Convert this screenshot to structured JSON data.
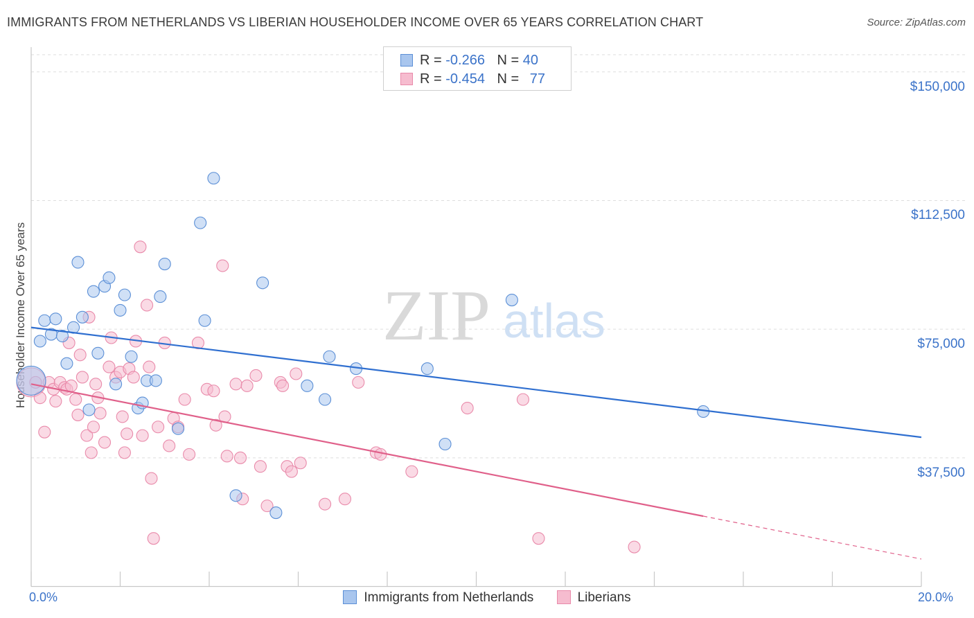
{
  "title": "IMMIGRANTS FROM NETHERLANDS VS LIBERIAN HOUSEHOLDER INCOME OVER 65 YEARS CORRELATION CHART",
  "source": "Source: ZipAtlas.com",
  "watermark": {
    "zip": "ZIP",
    "atlas": "atlas"
  },
  "colors": {
    "blue": "#5b8fd6",
    "blue_fill": "#a9c6ee",
    "blue_line": "#2f6fd0",
    "pink": "#e98aaa",
    "pink_fill": "#f6bccf",
    "pink_line": "#e0608a",
    "tick_text": "#3b73c9",
    "grid": "#dddddd"
  },
  "legend": {
    "rows": [
      {
        "r_label": "R =",
        "r_value": "-0.266",
        "n_label": "N =",
        "n_value": "40"
      },
      {
        "r_label": "R =",
        "r_value": "-0.454",
        "n_label": "N =",
        "n_value": "77"
      }
    ]
  },
  "chart_data": {
    "type": "scatter",
    "title": "IMMIGRANTS FROM NETHERLANDS VS LIBERIAN HOUSEHOLDER INCOME OVER 65 YEARS CORRELATION CHART",
    "xlabel": "",
    "ylabel": "Householder Income Over 65 years",
    "xlim": [
      0,
      20
    ],
    "ylim": [
      0,
      155000
    ],
    "x_tick_labels": [
      "0.0%",
      "20.0%"
    ],
    "y_ticks": [
      {
        "value": 37500,
        "label": "$37,500"
      },
      {
        "value": 75000,
        "label": "$75,000"
      },
      {
        "value": 112500,
        "label": "$112,500"
      },
      {
        "value": 150000,
        "label": "$150,000"
      }
    ],
    "series": [
      {
        "name": "Immigrants from Netherlands",
        "color": "blue",
        "trend": {
          "x0": 0.0,
          "y0": 75500,
          "x1": 20.0,
          "y1": 43500
        },
        "points": [
          [
            0.0,
            60000,
            1
          ],
          [
            0.2,
            71500,
            0
          ],
          [
            0.3,
            77500,
            0
          ],
          [
            0.45,
            73500,
            0
          ],
          [
            0.55,
            78000,
            0
          ],
          [
            0.7,
            73000,
            0
          ],
          [
            0.8,
            65000,
            0
          ],
          [
            0.95,
            75500,
            0
          ],
          [
            1.05,
            94500,
            0
          ],
          [
            1.15,
            78500,
            0
          ],
          [
            1.3,
            51500,
            0
          ],
          [
            1.4,
            86000,
            0
          ],
          [
            1.5,
            68000,
            0
          ],
          [
            1.65,
            87500,
            0
          ],
          [
            1.75,
            90000,
            0
          ],
          [
            1.9,
            59000,
            0
          ],
          [
            2.0,
            80500,
            0
          ],
          [
            2.1,
            85000,
            0
          ],
          [
            2.25,
            67000,
            0
          ],
          [
            2.4,
            52000,
            0
          ],
          [
            2.5,
            53500,
            0
          ],
          [
            2.6,
            60000,
            0
          ],
          [
            2.8,
            60000,
            0
          ],
          [
            2.9,
            84500,
            0
          ],
          [
            3.0,
            94000,
            0
          ],
          [
            3.3,
            46000,
            0
          ],
          [
            3.8,
            106000,
            0
          ],
          [
            3.9,
            77500,
            0
          ],
          [
            4.1,
            119000,
            0
          ],
          [
            4.6,
            26500,
            0
          ],
          [
            5.2,
            88500,
            0
          ],
          [
            5.5,
            21500,
            0
          ],
          [
            6.2,
            58500,
            0
          ],
          [
            6.6,
            54500,
            0
          ],
          [
            6.7,
            67000,
            0
          ],
          [
            7.3,
            63500,
            0
          ],
          [
            8.9,
            63500,
            0
          ],
          [
            9.3,
            41500,
            0
          ],
          [
            10.8,
            83500,
            0
          ],
          [
            15.1,
            51000,
            0
          ]
        ]
      },
      {
        "name": "Liberians",
        "color": "pink",
        "trend": {
          "x0": 0.0,
          "y0": 59000,
          "x1": 15.1,
          "y1": 20500,
          "dash_to_x": 20.0,
          "dash_to_y": 8000
        },
        "points": [
          [
            0.0,
            59500,
            1
          ],
          [
            0.1,
            59500,
            0
          ],
          [
            0.2,
            55000,
            0
          ],
          [
            0.3,
            45000,
            0
          ],
          [
            0.4,
            59500,
            0
          ],
          [
            0.5,
            57500,
            0
          ],
          [
            0.55,
            54000,
            0
          ],
          [
            0.65,
            59500,
            0
          ],
          [
            0.75,
            58000,
            0
          ],
          [
            0.8,
            57500,
            0
          ],
          [
            0.85,
            71000,
            0
          ],
          [
            0.9,
            58500,
            0
          ],
          [
            1.0,
            54500,
            0
          ],
          [
            1.05,
            50000,
            0
          ],
          [
            1.1,
            67500,
            0
          ],
          [
            1.15,
            61000,
            0
          ],
          [
            1.25,
            44000,
            0
          ],
          [
            1.3,
            78500,
            0
          ],
          [
            1.35,
            39000,
            0
          ],
          [
            1.4,
            46500,
            0
          ],
          [
            1.45,
            59000,
            0
          ],
          [
            1.5,
            55000,
            0
          ],
          [
            1.55,
            50500,
            0
          ],
          [
            1.65,
            42000,
            0
          ],
          [
            1.75,
            64000,
            0
          ],
          [
            1.8,
            72500,
            0
          ],
          [
            1.9,
            61000,
            0
          ],
          [
            2.0,
            62500,
            0
          ],
          [
            2.05,
            49500,
            0
          ],
          [
            2.1,
            39000,
            0
          ],
          [
            2.2,
            63500,
            0
          ],
          [
            2.3,
            61000,
            0
          ],
          [
            2.35,
            71500,
            0
          ],
          [
            2.45,
            99000,
            0
          ],
          [
            2.5,
            44000,
            0
          ],
          [
            2.6,
            82000,
            0
          ],
          [
            2.65,
            64000,
            0
          ],
          [
            2.7,
            31500,
            0
          ],
          [
            2.75,
            14000,
            0
          ],
          [
            2.85,
            46500,
            0
          ],
          [
            3.0,
            71000,
            0
          ],
          [
            3.1,
            41000,
            0
          ],
          [
            3.2,
            49000,
            0
          ],
          [
            3.3,
            46500,
            0
          ],
          [
            3.45,
            54500,
            0
          ],
          [
            3.55,
            38500,
            0
          ],
          [
            3.75,
            71000,
            0
          ],
          [
            3.95,
            57500,
            0
          ],
          [
            4.1,
            57000,
            0
          ],
          [
            4.15,
            47000,
            0
          ],
          [
            4.3,
            93500,
            0
          ],
          [
            4.35,
            49500,
            0
          ],
          [
            4.4,
            38000,
            0
          ],
          [
            4.6,
            59000,
            0
          ],
          [
            4.7,
            37500,
            0
          ],
          [
            4.75,
            25500,
            0
          ],
          [
            4.85,
            58500,
            0
          ],
          [
            5.05,
            61500,
            0
          ],
          [
            5.15,
            35000,
            0
          ],
          [
            5.3,
            23500,
            0
          ],
          [
            5.6,
            59500,
            0
          ],
          [
            5.65,
            58500,
            0
          ],
          [
            5.75,
            35000,
            0
          ],
          [
            5.85,
            33500,
            0
          ],
          [
            5.95,
            62000,
            0
          ],
          [
            6.05,
            36000,
            0
          ],
          [
            6.6,
            24000,
            0
          ],
          [
            7.05,
            25500,
            0
          ],
          [
            7.35,
            59500,
            0
          ],
          [
            7.75,
            39000,
            0
          ],
          [
            7.85,
            38500,
            0
          ],
          [
            8.55,
            33500,
            0
          ],
          [
            9.8,
            52000,
            0
          ],
          [
            11.05,
            54500,
            0
          ],
          [
            11.4,
            14000,
            0
          ],
          [
            13.55,
            11500,
            0
          ],
          [
            2.15,
            44500,
            0
          ]
        ]
      }
    ]
  }
}
